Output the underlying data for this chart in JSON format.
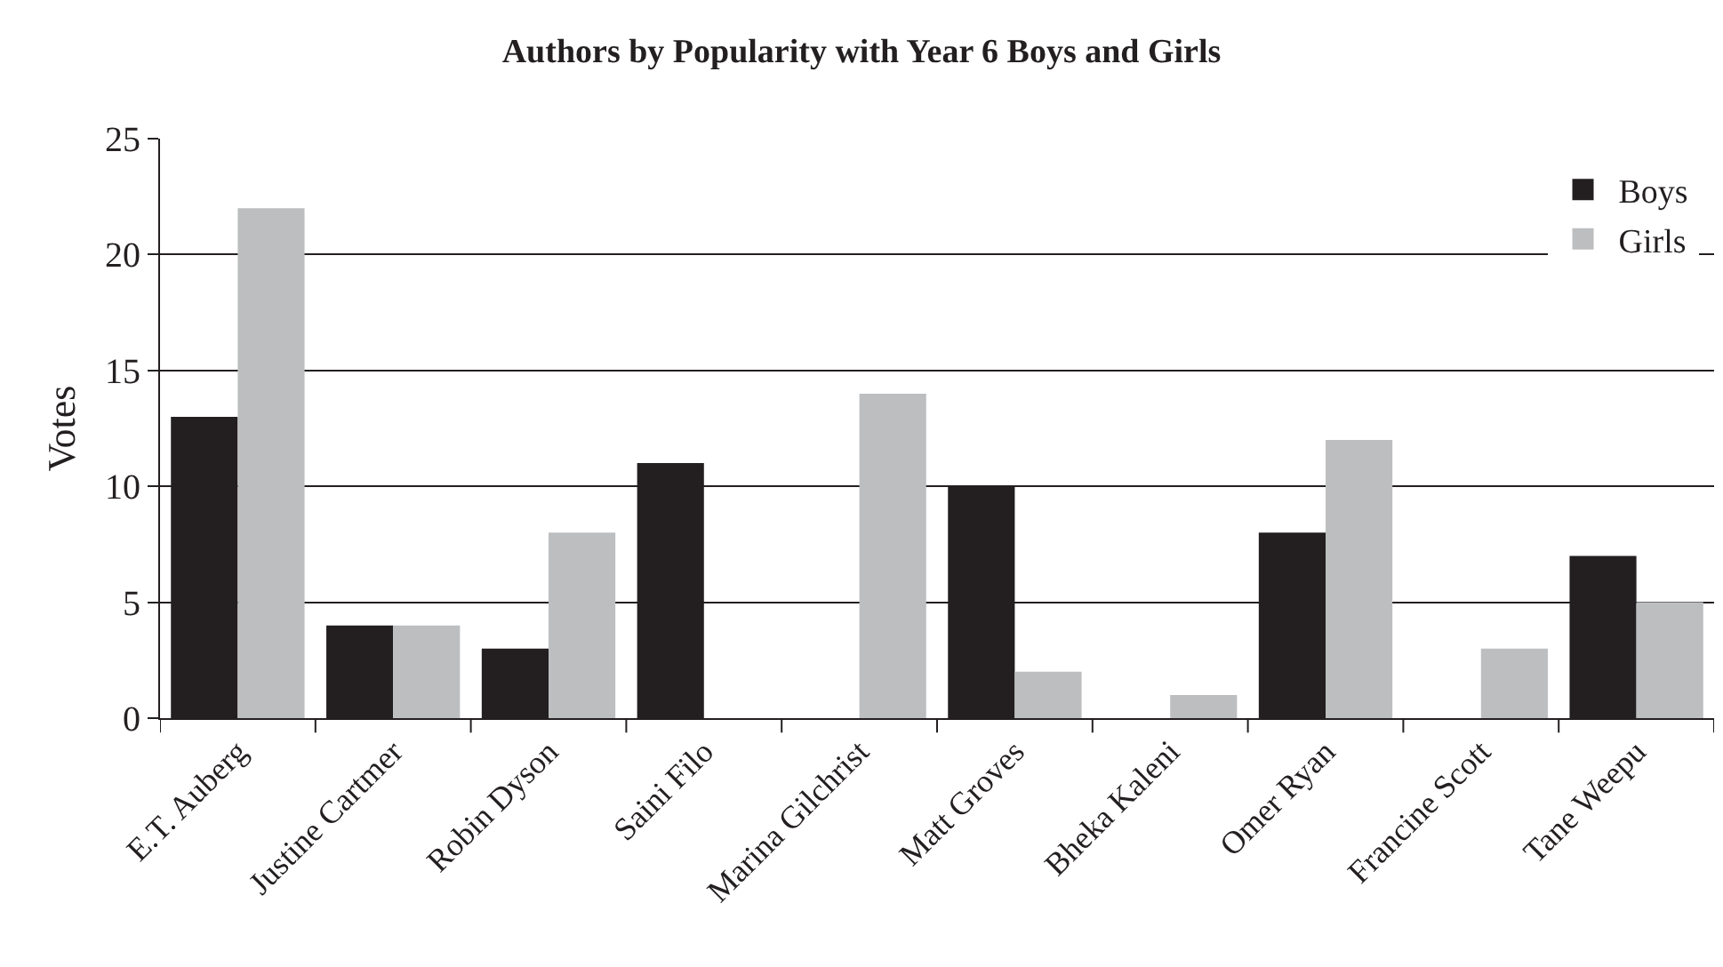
{
  "chart_data": {
    "type": "bar",
    "title": "Authors by Popularity with Year 6 Boys and Girls",
    "ylabel": "Votes",
    "categories": [
      "E.T. Auberg",
      "Justine Cartmer",
      "Robin Dyson",
      "Saini Filo",
      "Marina Gilchrist",
      "Matt Groves",
      "Bheka Kaleni",
      "Omer Ryan",
      "Francine Scott",
      "Tane Weepu"
    ],
    "series": [
      {
        "name": "Boys",
        "color": "#231f20",
        "values": [
          13,
          4,
          3,
          11,
          0,
          10,
          0,
          8,
          0,
          7
        ]
      },
      {
        "name": "Girls",
        "color": "#bcbec0",
        "values": [
          22,
          4,
          8,
          0,
          14,
          2,
          1,
          12,
          3,
          5
        ]
      }
    ],
    "ylim": [
      0,
      25
    ],
    "yticks": [
      0,
      5,
      10,
      15,
      20,
      25
    ],
    "grid": "y",
    "legend": "top right"
  }
}
